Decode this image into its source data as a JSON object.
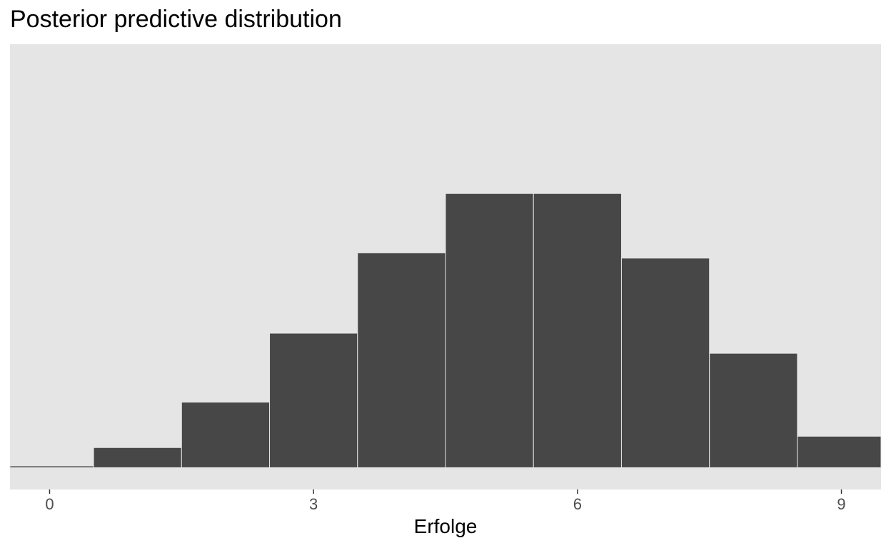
{
  "chart_data": {
    "type": "bar",
    "title": "Posterior predictive distribution",
    "xlabel": "Erfolge",
    "ylabel": "",
    "categories": [
      0,
      1,
      2,
      3,
      4,
      5,
      6,
      7,
      8,
      9
    ],
    "values": [
      0.002,
      0.023,
      0.075,
      0.154,
      0.246,
      0.314,
      0.314,
      0.24,
      0.131,
      0.036
    ],
    "x_ticks": [
      0,
      3,
      6,
      9
    ],
    "xlim": [
      -0.45,
      9.45
    ],
    "ylim": [
      -0.025,
      0.485
    ],
    "grid": false,
    "legend": "none",
    "colors": {
      "panel_background": "#e5e5e5",
      "bar_fill": "#474747",
      "bar_outline": "#e5e5e5",
      "tick_label": "#4d4d4d",
      "tick_mark": "#333333"
    }
  }
}
